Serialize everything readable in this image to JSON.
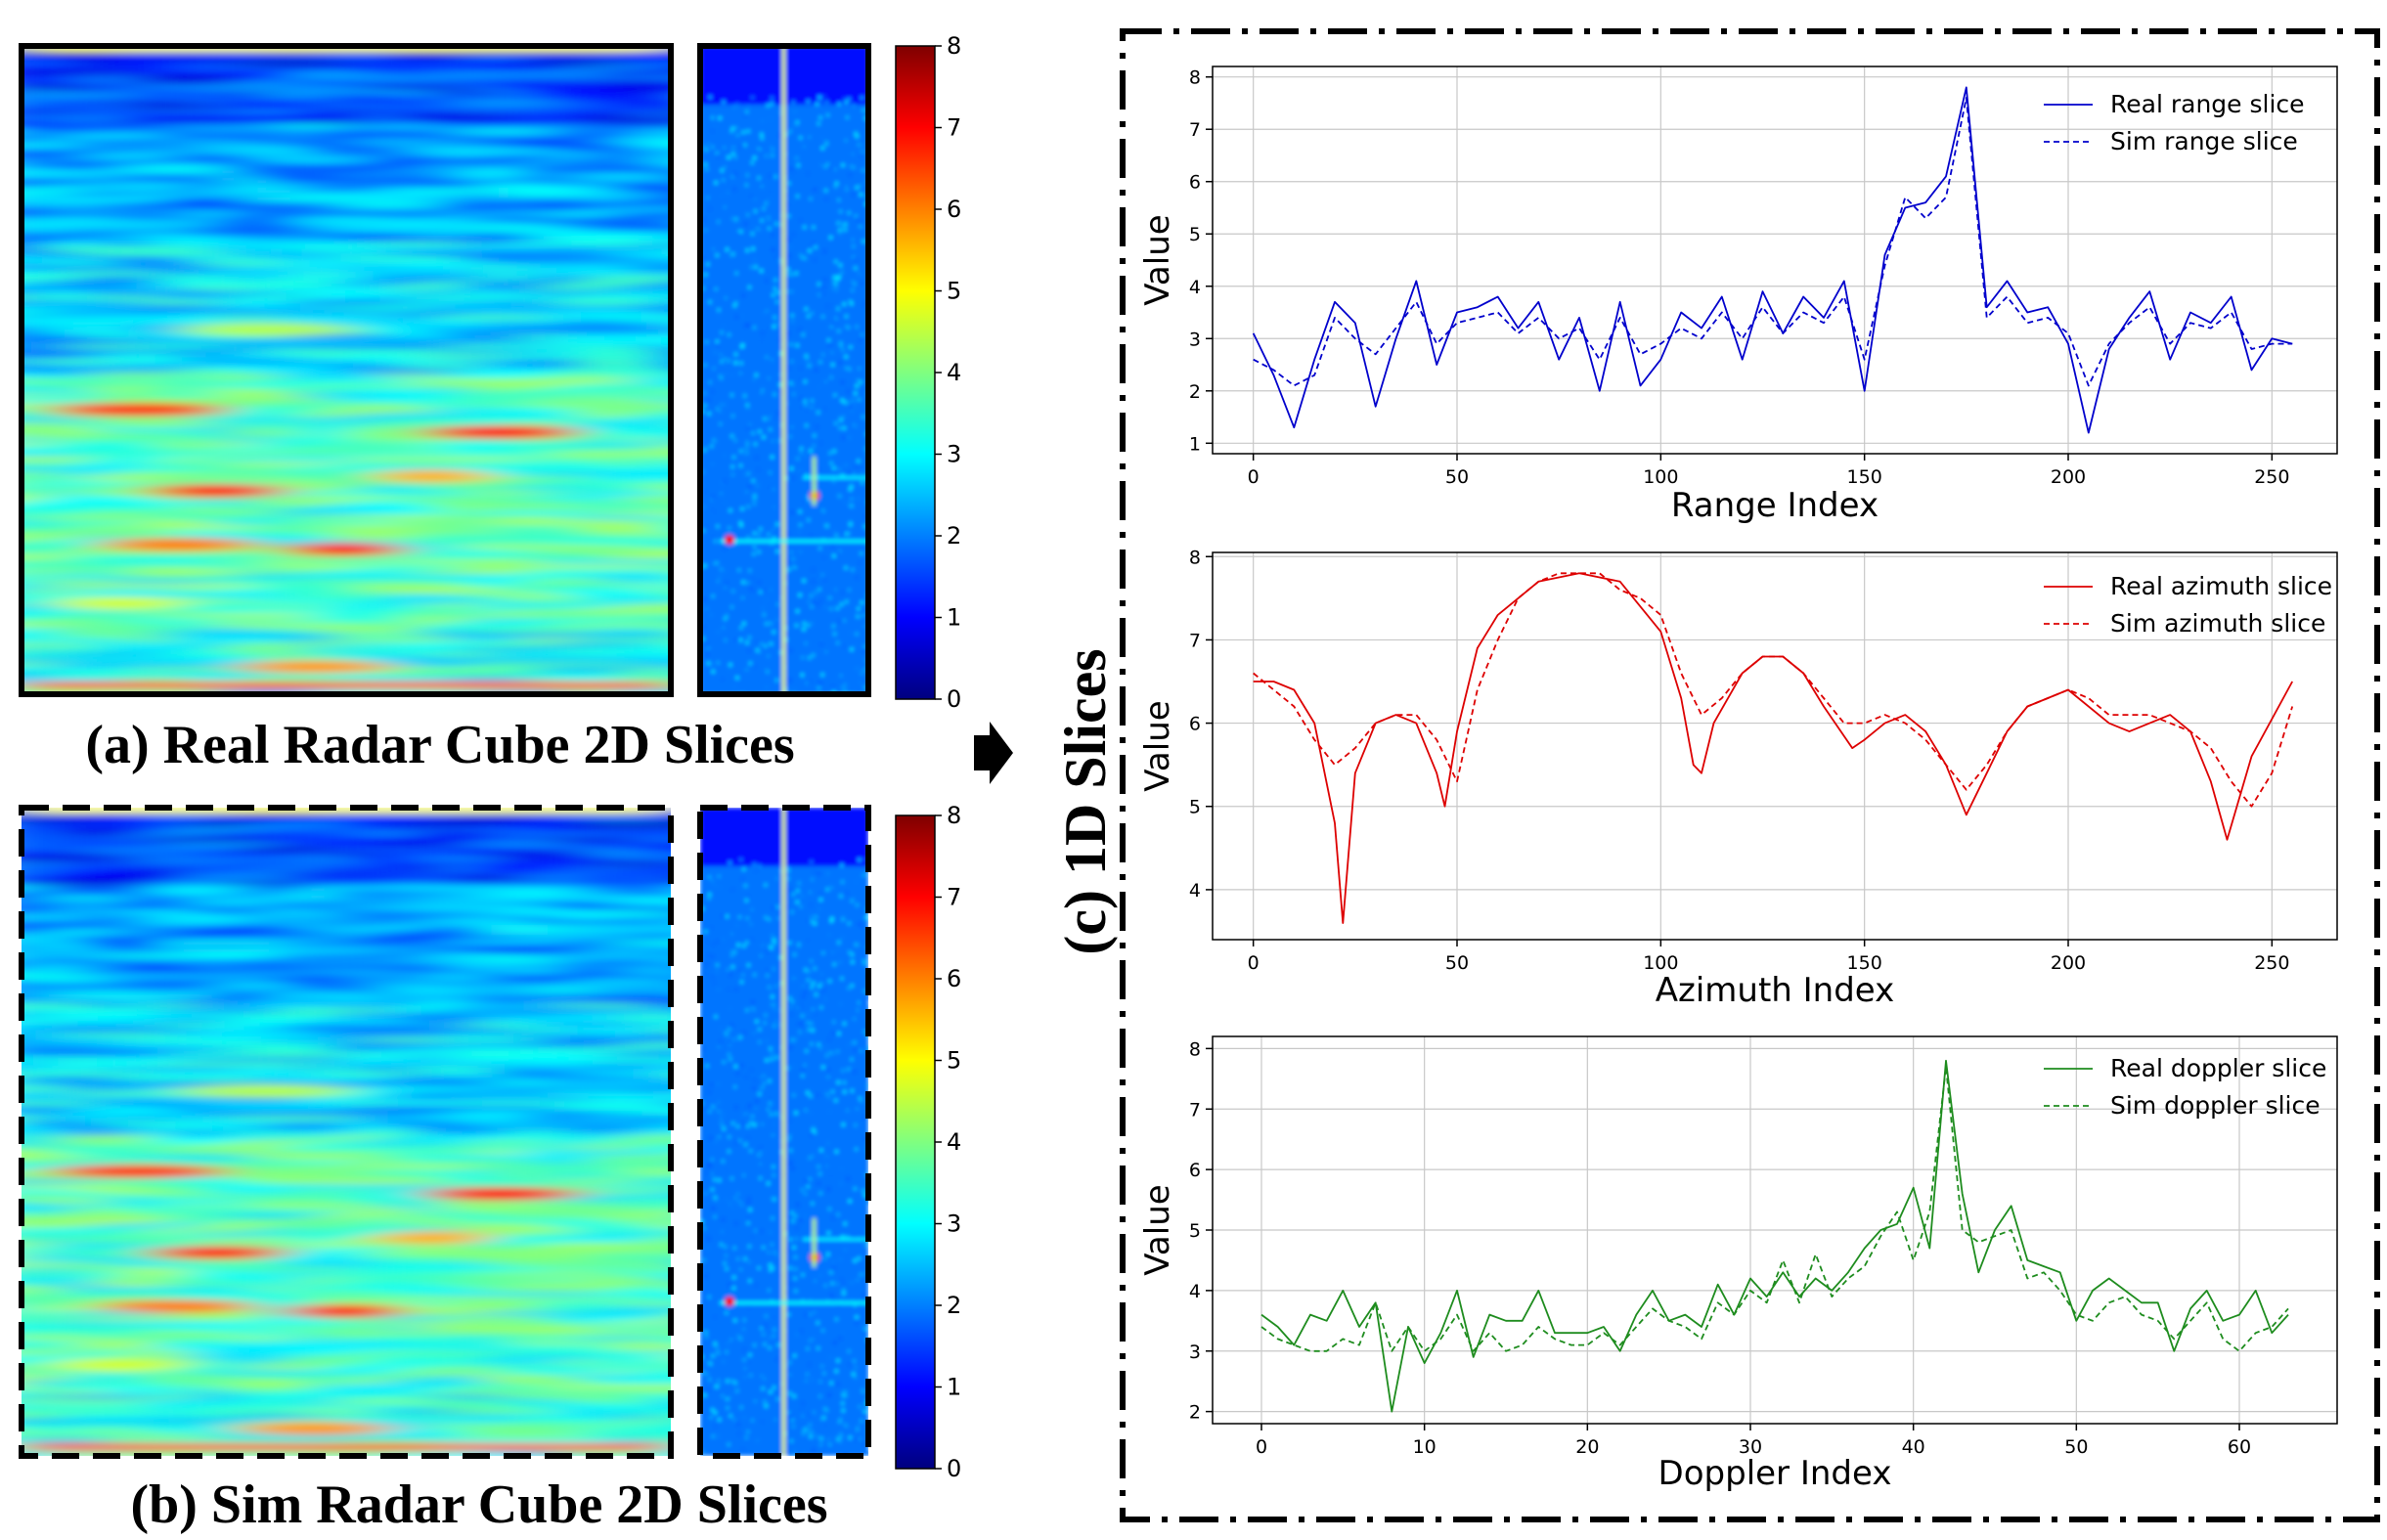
{
  "captions": {
    "a": "(a) Real Radar Cube 2D Slices",
    "b": "(b) Sim Radar Cube 2D Slices",
    "c": "(c) 1D Slices"
  },
  "colorbar": {
    "ticks": [
      0,
      1,
      2,
      3,
      4,
      5,
      6,
      7,
      8
    ],
    "colormap": "jet",
    "colors": [
      "#00007f",
      "#0000ff",
      "#007fff",
      "#00ffff",
      "#7fff7f",
      "#ffff00",
      "#ff7f00",
      "#ff0000",
      "#7f0000"
    ]
  },
  "chart_data": [
    {
      "type": "line",
      "xlabel": "Range Index",
      "ylabel": "Value",
      "xlim": [
        -10,
        266
      ],
      "ylim": [
        0.8,
        8.2
      ],
      "xticks": [
        0,
        50,
        100,
        150,
        200,
        250
      ],
      "yticks": [
        1,
        2,
        3,
        4,
        5,
        6,
        7,
        8
      ],
      "grid": true,
      "legend": "top-right",
      "color": "#0000cc",
      "series": [
        {
          "name": "Real range slice",
          "style": "solid",
          "x": [
            0,
            5,
            10,
            15,
            20,
            25,
            30,
            35,
            40,
            45,
            50,
            55,
            60,
            65,
            70,
            75,
            80,
            85,
            90,
            95,
            100,
            105,
            110,
            115,
            120,
            125,
            130,
            135,
            140,
            145,
            150,
            155,
            160,
            165,
            170,
            175,
            180,
            185,
            190,
            195,
            200,
            205,
            210,
            215,
            220,
            225,
            230,
            235,
            240,
            245,
            250,
            255
          ],
          "values": [
            3.1,
            2.3,
            1.3,
            2.6,
            3.7,
            3.3,
            1.7,
            3.0,
            4.1,
            2.5,
            3.5,
            3.6,
            3.8,
            3.2,
            3.7,
            2.6,
            3.4,
            2.0,
            3.7,
            2.1,
            2.6,
            3.5,
            3.2,
            3.8,
            2.6,
            3.9,
            3.1,
            3.8,
            3.4,
            4.1,
            2.0,
            4.6,
            5.5,
            5.6,
            6.1,
            7.8,
            3.6,
            4.1,
            3.5,
            3.6,
            2.9,
            1.2,
            2.8,
            3.4,
            3.9,
            2.6,
            3.5,
            3.3,
            3.8,
            2.4,
            3.0,
            2.9
          ]
        },
        {
          "name": "Sim range slice",
          "style": "dashed",
          "x": [
            0,
            5,
            10,
            15,
            20,
            25,
            30,
            35,
            40,
            45,
            50,
            55,
            60,
            65,
            70,
            75,
            80,
            85,
            90,
            95,
            100,
            105,
            110,
            115,
            120,
            125,
            130,
            135,
            140,
            145,
            150,
            155,
            160,
            165,
            170,
            175,
            180,
            185,
            190,
            195,
            200,
            205,
            210,
            215,
            220,
            225,
            230,
            235,
            240,
            245,
            250,
            255
          ],
          "values": [
            2.6,
            2.4,
            2.1,
            2.3,
            3.4,
            3.0,
            2.7,
            3.2,
            3.7,
            2.9,
            3.3,
            3.4,
            3.5,
            3.1,
            3.4,
            3.0,
            3.2,
            2.6,
            3.4,
            2.7,
            2.9,
            3.2,
            3.0,
            3.5,
            3.0,
            3.6,
            3.1,
            3.5,
            3.3,
            3.8,
            2.6,
            4.4,
            5.7,
            5.3,
            5.7,
            7.6,
            3.4,
            3.8,
            3.3,
            3.4,
            3.1,
            2.1,
            2.9,
            3.3,
            3.6,
            2.9,
            3.3,
            3.2,
            3.5,
            2.8,
            2.9,
            2.9
          ]
        }
      ]
    },
    {
      "type": "line",
      "xlabel": "Azimuth Index",
      "ylabel": "Value",
      "xlim": [
        -10,
        266
      ],
      "ylim": [
        3.4,
        8.05
      ],
      "xticks": [
        0,
        50,
        100,
        150,
        200,
        250
      ],
      "yticks": [
        4,
        5,
        6,
        7,
        8
      ],
      "grid": true,
      "legend": "top-right",
      "color": "#dd0000",
      "series": [
        {
          "name": "Real azimuth slice",
          "style": "solid",
          "x": [
            0,
            5,
            10,
            15,
            20,
            22,
            25,
            30,
            35,
            40,
            45,
            47,
            50,
            55,
            60,
            70,
            80,
            90,
            100,
            105,
            108,
            110,
            113,
            120,
            125,
            130,
            135,
            140,
            147,
            150,
            155,
            160,
            165,
            170,
            175,
            180,
            185,
            190,
            200,
            210,
            215,
            220,
            225,
            230,
            235,
            239,
            245,
            255
          ],
          "values": [
            6.5,
            6.5,
            6.4,
            6.0,
            4.8,
            3.6,
            5.4,
            6.0,
            6.1,
            6.0,
            5.4,
            5.0,
            5.9,
            6.9,
            7.3,
            7.7,
            7.8,
            7.7,
            7.1,
            6.3,
            5.5,
            5.4,
            6.0,
            6.6,
            6.8,
            6.8,
            6.6,
            6.2,
            5.7,
            5.8,
            6.0,
            6.1,
            5.9,
            5.5,
            4.9,
            5.4,
            5.9,
            6.2,
            6.4,
            6.0,
            5.9,
            6.0,
            6.1,
            5.9,
            5.3,
            4.6,
            5.6,
            6.5
          ]
        },
        {
          "name": "Sim azimuth slice",
          "style": "dashed",
          "x": [
            0,
            5,
            10,
            15,
            20,
            25,
            30,
            35,
            40,
            45,
            50,
            55,
            60,
            65,
            70,
            75,
            80,
            85,
            90,
            95,
            100,
            105,
            110,
            115,
            120,
            125,
            130,
            135,
            140,
            145,
            150,
            155,
            160,
            165,
            170,
            175,
            180,
            185,
            190,
            195,
            200,
            205,
            210,
            215,
            220,
            225,
            230,
            235,
            240,
            245,
            250,
            255
          ],
          "values": [
            6.6,
            6.4,
            6.2,
            5.8,
            5.5,
            5.7,
            6.0,
            6.1,
            6.1,
            5.8,
            5.3,
            6.4,
            7.0,
            7.5,
            7.7,
            7.8,
            7.8,
            7.8,
            7.6,
            7.5,
            7.3,
            6.6,
            6.1,
            6.3,
            6.6,
            6.8,
            6.8,
            6.6,
            6.3,
            6.0,
            6.0,
            6.1,
            6.0,
            5.8,
            5.5,
            5.2,
            5.5,
            5.9,
            6.2,
            6.3,
            6.4,
            6.3,
            6.1,
            6.1,
            6.1,
            6.0,
            5.9,
            5.7,
            5.3,
            5.0,
            5.4,
            6.2
          ]
        }
      ]
    },
    {
      "type": "line",
      "xlabel": "Doppler Index",
      "ylabel": "Value",
      "xlim": [
        -3,
        66
      ],
      "ylim": [
        1.8,
        8.2
      ],
      "xticks": [
        0,
        10,
        20,
        30,
        40,
        50,
        60
      ],
      "yticks": [
        2,
        3,
        4,
        5,
        6,
        7,
        8
      ],
      "grid": true,
      "legend": "top-right",
      "color": "#1e8c1e",
      "series": [
        {
          "name": "Real doppler slice",
          "style": "solid",
          "x": [
            0,
            1,
            2,
            3,
            4,
            5,
            6,
            7,
            8,
            9,
            10,
            11,
            12,
            13,
            14,
            15,
            16,
            17,
            18,
            19,
            20,
            21,
            22,
            23,
            24,
            25,
            26,
            27,
            28,
            29,
            30,
            31,
            32,
            33,
            34,
            35,
            36,
            37,
            38,
            39,
            40,
            41,
            42,
            43,
            44,
            45,
            46,
            47,
            48,
            49,
            50,
            51,
            52,
            53,
            54,
            55,
            56,
            57,
            58,
            59,
            60,
            61,
            62,
            63
          ],
          "values": [
            3.6,
            3.4,
            3.1,
            3.6,
            3.5,
            4.0,
            3.4,
            3.8,
            2.0,
            3.4,
            2.8,
            3.3,
            4.0,
            2.9,
            3.6,
            3.5,
            3.5,
            4.0,
            3.3,
            3.3,
            3.3,
            3.4,
            3.0,
            3.6,
            4.0,
            3.5,
            3.6,
            3.4,
            4.1,
            3.6,
            4.2,
            3.9,
            4.3,
            3.9,
            4.2,
            4.0,
            4.3,
            4.7,
            5.0,
            5.1,
            5.7,
            4.7,
            7.8,
            5.6,
            4.3,
            5.0,
            5.4,
            4.5,
            4.4,
            4.3,
            3.5,
            4.0,
            4.2,
            4.0,
            3.8,
            3.8,
            3.0,
            3.7,
            4.0,
            3.5,
            3.6,
            4.0,
            3.3,
            3.6
          ]
        },
        {
          "name": "Sim doppler slice",
          "style": "dashed",
          "x": [
            0,
            1,
            2,
            3,
            4,
            5,
            6,
            7,
            8,
            9,
            10,
            11,
            12,
            13,
            14,
            15,
            16,
            17,
            18,
            19,
            20,
            21,
            22,
            23,
            24,
            25,
            26,
            27,
            28,
            29,
            30,
            31,
            32,
            33,
            34,
            35,
            36,
            37,
            38,
            39,
            40,
            41,
            42,
            43,
            44,
            45,
            46,
            47,
            48,
            49,
            50,
            51,
            52,
            53,
            54,
            55,
            56,
            57,
            58,
            59,
            60,
            61,
            62,
            63
          ],
          "values": [
            3.4,
            3.2,
            3.1,
            3.0,
            3.0,
            3.2,
            3.1,
            3.8,
            3.0,
            3.4,
            3.0,
            3.2,
            3.6,
            3.0,
            3.3,
            3.0,
            3.1,
            3.4,
            3.2,
            3.1,
            3.1,
            3.3,
            3.1,
            3.4,
            3.7,
            3.5,
            3.4,
            3.2,
            3.8,
            3.6,
            4.0,
            3.8,
            4.5,
            3.8,
            4.6,
            3.9,
            4.2,
            4.4,
            4.9,
            5.3,
            4.5,
            5.3,
            7.7,
            5.0,
            4.8,
            4.9,
            5.0,
            4.2,
            4.3,
            4.0,
            3.6,
            3.5,
            3.8,
            3.9,
            3.6,
            3.5,
            3.2,
            3.5,
            3.8,
            3.2,
            3.0,
            3.3,
            3.4,
            3.7
          ]
        }
      ]
    }
  ]
}
